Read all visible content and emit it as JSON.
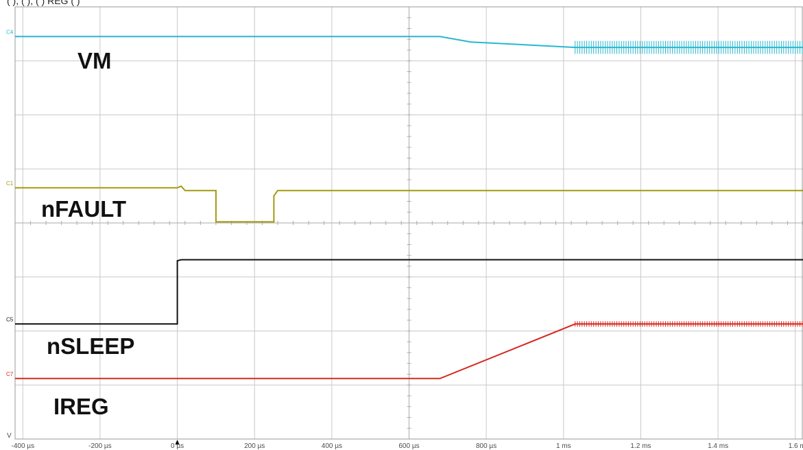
{
  "header_text": "(        ),             (        ),             (        )        REG (        )",
  "chart_data": {
    "type": "line",
    "title": "",
    "xlabel": "",
    "ylabel": "",
    "x_unit": "µs",
    "xlim": [
      -420,
      1620
    ],
    "x_ticks": [
      {
        "value": -400,
        "label": "-400 µs"
      },
      {
        "value": -200,
        "label": "-200 µs"
      },
      {
        "value": 0,
        "label": "0 µs"
      },
      {
        "value": 200,
        "label": "200 µs"
      },
      {
        "value": 400,
        "label": "400 µs"
      },
      {
        "value": 600,
        "label": "600 µs"
      },
      {
        "value": 800,
        "label": "800 µs"
      },
      {
        "value": 1000,
        "label": "1 ms"
      },
      {
        "value": 1200,
        "label": "1.2 ms"
      },
      {
        "value": 1400,
        "label": "1.4 ms"
      },
      {
        "value": 1600,
        "label": "1.6 m"
      }
    ],
    "y_unit_label": "V",
    "trigger_marker_x": 0,
    "grid": true,
    "grid_divisions": {
      "x": 10,
      "y": 8
    },
    "y_div_range": [
      0,
      8
    ],
    "series": [
      {
        "name": "VM",
        "channel": "C4",
        "color": "#27b7cf",
        "label_style": {
          "color": "#111111"
        },
        "points": [
          [
            -420,
            7.45
          ],
          [
            680,
            7.45
          ],
          [
            760,
            7.35
          ],
          [
            1030,
            7.25
          ],
          [
            1620,
            7.25
          ]
        ],
        "ripple": {
          "start": 1030,
          "amplitude": 0.12
        }
      },
      {
        "name": "nFAULT",
        "channel": "C1",
        "color": "#a19a0f",
        "points": [
          [
            -420,
            4.65
          ],
          [
            0,
            4.65
          ],
          [
            10,
            4.68
          ],
          [
            20,
            4.6
          ],
          [
            100,
            4.6
          ],
          [
            100,
            4.02
          ],
          [
            250,
            4.02
          ],
          [
            250,
            4.5
          ],
          [
            260,
            4.6
          ],
          [
            1620,
            4.6
          ]
        ]
      },
      {
        "name": "nSLEEP",
        "channel": "C5",
        "color": "#111111",
        "points": [
          [
            -420,
            2.13
          ],
          [
            0,
            2.13
          ],
          [
            0,
            3.3
          ],
          [
            10,
            3.32
          ],
          [
            1620,
            3.32
          ]
        ]
      },
      {
        "name": "IREG",
        "channel": "C7",
        "color": "#d6281e",
        "points": [
          [
            -420,
            1.12
          ],
          [
            680,
            1.12
          ],
          [
            1030,
            2.13
          ],
          [
            1620,
            2.13
          ]
        ],
        "ripple": {
          "start": 1030,
          "amplitude": 0.05
        }
      }
    ]
  }
}
